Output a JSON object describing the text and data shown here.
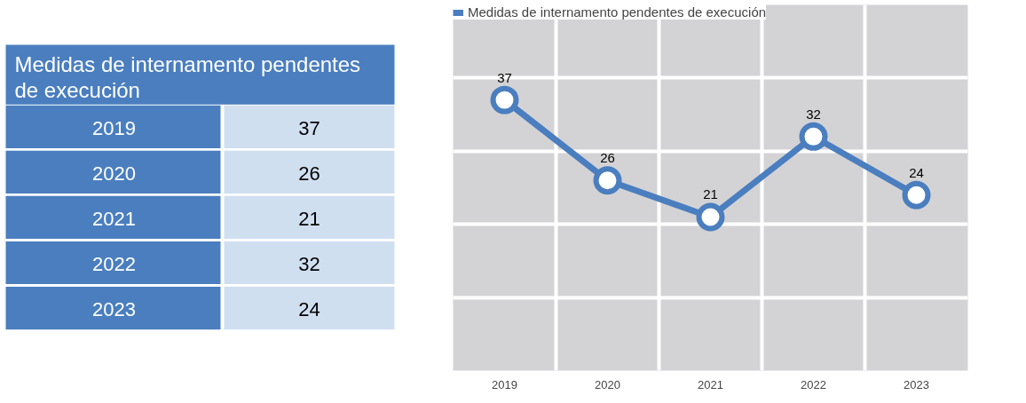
{
  "chart_data": {
    "type": "line",
    "title": "Medidas de internamento  pendentes de execución",
    "categories": [
      "2019",
      "2020",
      "2021",
      "2022",
      "2023"
    ],
    "series": [
      {
        "name": "Medidas de internamento pendentes de execución",
        "color": "#4a7ebf",
        "values": [
          37,
          26,
          21,
          32,
          24
        ],
        "value_labels": [
          "37",
          "26",
          "21",
          "32",
          "24"
        ]
      }
    ],
    "ylim": [
      0,
      50
    ],
    "yticks": [
      {
        "value": 0,
        "label": null
      },
      {
        "value": 10,
        "label": null
      },
      {
        "value": 20,
        "label": null
      },
      {
        "value": 30,
        "label": null
      },
      {
        "value": 40,
        "label": null
      },
      {
        "value": 50,
        "label": null
      }
    ],
    "tick_labels": "x",
    "grid": true,
    "legend": "top left",
    "marker": "circle",
    "line_style": "solid",
    "data_labels": true
  }
}
